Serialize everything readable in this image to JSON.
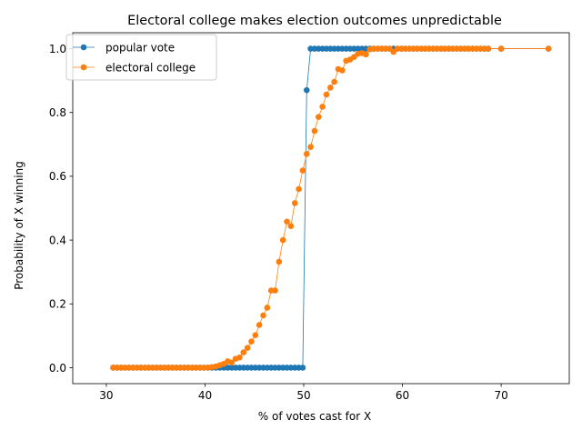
{
  "chart_data": {
    "type": "line",
    "title": "Electoral college makes election outcomes unpredictable",
    "xlabel": "% of votes cast for X",
    "ylabel": "Probability of X winning",
    "xlim": [
      26.6,
      76.9
    ],
    "ylim": [
      -0.05,
      1.05
    ],
    "xticks": [
      30,
      40,
      50,
      60,
      70
    ],
    "xtick_labels": [
      "30",
      "40",
      "50",
      "60",
      "70"
    ],
    "yticks": [
      0.0,
      0.2,
      0.4,
      0.6,
      0.8,
      1.0
    ],
    "ytick_labels": [
      "0.0",
      "0.2",
      "0.4",
      "0.6",
      "0.8",
      "1.0"
    ],
    "grid": false,
    "legend_position": "top-left",
    "x": [
      30.7,
      31.1,
      31.5,
      31.9,
      32.3,
      32.7,
      33.1,
      33.5,
      33.9,
      34.3,
      34.7,
      35.1,
      35.5,
      35.9,
      36.3,
      36.7,
      37.1,
      37.5,
      37.9,
      38.3,
      38.7,
      39.1,
      39.5,
      39.9,
      40.3,
      40.7,
      41.1,
      41.5,
      41.9,
      42.3,
      42.7,
      43.1,
      43.5,
      43.9,
      44.3,
      44.7,
      45.1,
      45.5,
      45.9,
      46.3,
      46.7,
      47.1,
      47.5,
      47.9,
      48.3,
      48.7,
      49.1,
      49.5,
      49.9,
      50.3,
      50.7,
      51.1,
      51.5,
      51.9,
      52.3,
      52.7,
      53.1,
      53.5,
      53.9,
      54.3,
      54.7,
      55.1,
      55.5,
      55.9,
      56.3,
      56.7,
      57.1,
      57.5,
      57.9,
      58.3,
      58.7,
      59.1,
      59.5,
      59.9,
      60.3,
      60.7,
      61.1,
      61.5,
      61.9,
      62.3,
      62.7,
      63.1,
      63.5,
      63.9,
      64.3,
      64.7,
      65.1,
      65.5,
      65.9,
      66.3,
      66.7,
      67.1,
      67.5,
      67.9,
      68.3,
      68.7,
      70.0,
      74.8
    ],
    "series": [
      {
        "name": "popular vote",
        "color": "#1f77b4",
        "values": [
          0,
          0,
          0,
          0,
          0,
          0,
          0,
          0,
          0,
          0,
          0,
          0,
          0,
          0,
          0,
          0,
          0,
          0,
          0,
          0,
          0,
          0,
          0,
          0,
          0,
          0,
          0,
          0,
          0,
          0,
          0,
          0,
          0,
          0,
          0,
          0,
          0,
          0,
          0,
          0,
          0,
          0,
          0,
          0,
          0,
          0,
          0,
          0,
          0,
          0.87,
          1,
          1,
          1,
          1,
          1,
          1,
          1,
          1,
          1,
          1,
          1,
          1,
          1,
          1,
          1,
          1,
          1,
          1,
          1,
          1,
          1,
          1,
          1,
          1,
          1,
          1,
          1,
          1,
          1,
          1,
          1,
          1,
          1,
          1,
          1,
          1,
          1,
          1,
          1,
          1,
          1,
          1,
          1,
          1,
          1,
          1,
          1,
          1
        ]
      },
      {
        "name": "electoral college",
        "color": "#ff7f0e",
        "values": [
          0,
          0,
          0,
          0,
          0,
          0,
          0,
          0,
          0,
          0,
          0,
          0,
          0,
          0,
          0,
          0,
          0,
          0,
          0,
          0,
          0,
          0,
          0,
          0,
          0,
          0.002,
          0.004,
          0.008,
          0.012,
          0.02,
          0.016,
          0.028,
          0.032,
          0.048,
          0.062,
          0.082,
          0.102,
          0.134,
          0.164,
          0.188,
          0.242,
          0.242,
          0.332,
          0.4,
          0.458,
          0.444,
          0.516,
          0.56,
          0.618,
          0.67,
          0.692,
          0.742,
          0.786,
          0.818,
          0.856,
          0.878,
          0.896,
          0.936,
          0.932,
          0.962,
          0.966,
          0.974,
          0.984,
          0.986,
          0.982,
          0.998,
          1,
          1,
          1,
          1,
          1,
          0.99,
          1,
          1,
          1,
          1,
          1,
          1,
          1,
          1,
          1,
          1,
          1,
          1,
          1,
          1,
          1,
          1,
          1,
          1,
          1,
          1,
          1,
          1,
          1,
          1,
          1,
          1
        ]
      }
    ]
  }
}
